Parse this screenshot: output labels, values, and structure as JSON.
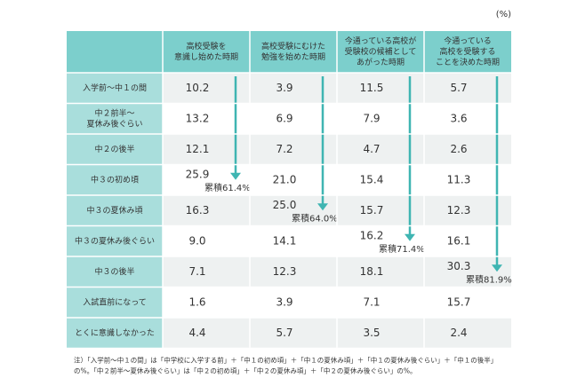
{
  "unit": "(%)",
  "header": {
    "columns": [
      [
        "高校受験を",
        "意識し始めた時期"
      ],
      [
        "高校受験にむけた",
        "勉強を始めた時期"
      ],
      [
        "今通っている高校が",
        "受験校の候補として",
        "あがった時期"
      ],
      [
        "今通っている",
        "高校を受験する",
        "ことを決めた時期"
      ]
    ]
  },
  "table": {
    "rows": [
      {
        "label": [
          "入学前〜中１の間"
        ],
        "cells": [
          "10.2",
          "3.9",
          "11.5",
          "5.7"
        ]
      },
      {
        "label": [
          "中２前半〜",
          "夏休み後ぐらい"
        ],
        "cells": [
          "13.2",
          "6.9",
          "7.9",
          "3.6"
        ]
      },
      {
        "label": [
          "中２の後半"
        ],
        "cells": [
          "12.1",
          "7.2",
          "4.7",
          "2.6"
        ]
      },
      {
        "label": [
          "中３の初め頃"
        ],
        "cells": [
          {
            "value": "25.9",
            "note": "累積61.4%"
          },
          "21.0",
          "15.4",
          "11.3"
        ]
      },
      {
        "label": [
          "中３の夏休み頃"
        ],
        "cells": [
          "16.3",
          {
            "value": "25.0",
            "note": "累積64.0%"
          },
          "15.7",
          "12.3"
        ]
      },
      {
        "label": [
          "中３の夏休み後ぐらい"
        ],
        "cells": [
          "9.0",
          "14.1",
          {
            "value": "16.2",
            "note": "累積71.4%"
          },
          "16.1"
        ]
      },
      {
        "label": [
          "中３の後半"
        ],
        "cells": [
          "7.1",
          "12.3",
          "18.1",
          {
            "value": "30.3",
            "note": "累積81.9%"
          }
        ]
      },
      {
        "label": [
          "入試直前になって"
        ],
        "cells": [
          "1.6",
          "3.9",
          "7.1",
          "15.7"
        ]
      },
      {
        "label": [
          "とくに意識しなかった"
        ],
        "cells": [
          "4.4",
          "5.7",
          "3.5",
          "2.4"
        ]
      }
    ]
  },
  "footnote": [
    "注）「入学前〜中１の間」は「中学校に入学する前」＋「中１の初め頃」＋「中１の夏休み頃」＋「中１の夏休み後ぐらい」＋「中１の後半」",
    "の%。「中２前半〜夏休み後ぐらい」は「中２の初め頃」＋「中２の夏休み頃」＋「中２の夏休み後ぐらい」の%。"
  ]
}
